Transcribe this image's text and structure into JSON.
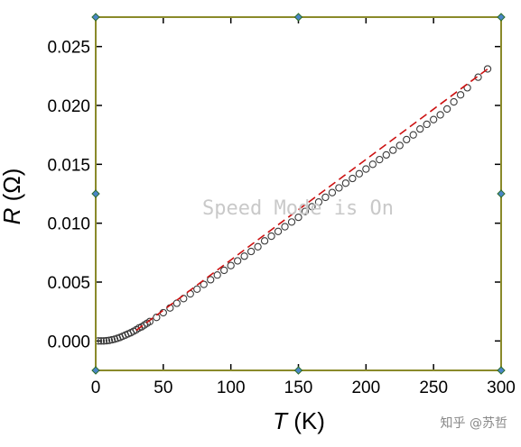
{
  "chart_data": {
    "type": "scatter",
    "xlabel": {
      "italic": "T",
      "unit": "(K)"
    },
    "ylabel": {
      "italic": "R",
      "unit": "(Ω)"
    },
    "xlim": [
      0,
      300
    ],
    "ylim": [
      -0.0025,
      0.0275
    ],
    "xticks": [
      0,
      50,
      100,
      150,
      200,
      250,
      300
    ],
    "yticks": [
      0.0,
      0.005,
      0.01,
      0.015,
      0.02,
      0.025
    ],
    "xtick_labels": [
      "0",
      "50",
      "100",
      "150",
      "200",
      "250",
      "300"
    ],
    "ytick_labels": [
      "0.000",
      "0.005",
      "0.010",
      "0.015",
      "0.020",
      "0.025"
    ],
    "grid": false,
    "marker_color": "#3a3a3a",
    "fit_color": "#cc1111",
    "frame_color": "#8a8a2a",
    "series": [
      {
        "kind": "scatter",
        "marker": "open-circle",
        "points": [
          [
            2,
            0.0
          ],
          [
            4,
            0.0
          ],
          [
            6,
            0.0
          ],
          [
            8,
            2e-05
          ],
          [
            10,
            5e-05
          ],
          [
            12,
            0.0001
          ],
          [
            14,
            0.00015
          ],
          [
            16,
            0.00022
          ],
          [
            18,
            0.0003
          ],
          [
            20,
            0.0004
          ],
          [
            22,
            0.0005
          ],
          [
            24,
            0.0006
          ],
          [
            26,
            0.0007
          ],
          [
            28,
            0.00082
          ],
          [
            30,
            0.00095
          ],
          [
            32,
            0.0011
          ],
          [
            34,
            0.0012
          ],
          [
            36,
            0.00135
          ],
          [
            38,
            0.0015
          ],
          [
            40,
            0.00165
          ],
          [
            45,
            0.002
          ],
          [
            50,
            0.0024
          ],
          [
            55,
            0.0028
          ],
          [
            60,
            0.0032
          ],
          [
            65,
            0.0036
          ],
          [
            70,
            0.004
          ],
          [
            75,
            0.0044
          ],
          [
            80,
            0.0048
          ],
          [
            85,
            0.0052
          ],
          [
            90,
            0.0056
          ],
          [
            95,
            0.006
          ],
          [
            100,
            0.0064
          ],
          [
            105,
            0.0068
          ],
          [
            110,
            0.0072
          ],
          [
            115,
            0.0076
          ],
          [
            120,
            0.008
          ],
          [
            125,
            0.0085
          ],
          [
            130,
            0.0089
          ],
          [
            135,
            0.0093
          ],
          [
            140,
            0.0097
          ],
          [
            145,
            0.0101
          ],
          [
            150,
            0.0105
          ],
          [
            155,
            0.011
          ],
          [
            160,
            0.0114
          ],
          [
            165,
            0.0118
          ],
          [
            170,
            0.0122
          ],
          [
            175,
            0.0126
          ],
          [
            180,
            0.013
          ],
          [
            185,
            0.0134
          ],
          [
            190,
            0.0138
          ],
          [
            195,
            0.0142
          ],
          [
            200,
            0.0146
          ],
          [
            205,
            0.015
          ],
          [
            210,
            0.0154
          ],
          [
            215,
            0.0158
          ],
          [
            220,
            0.0162
          ],
          [
            225,
            0.0166
          ],
          [
            230,
            0.0171
          ],
          [
            235,
            0.0175
          ],
          [
            240,
            0.018
          ],
          [
            245,
            0.0184
          ],
          [
            250,
            0.0188
          ],
          [
            255,
            0.0192
          ],
          [
            260,
            0.0197
          ],
          [
            265,
            0.0203
          ],
          [
            270,
            0.0209
          ],
          [
            275,
            0.0215
          ],
          [
            283,
            0.0224
          ],
          [
            290,
            0.0231
          ]
        ]
      },
      {
        "kind": "line",
        "style": "dashed",
        "points": [
          [
            30,
            0.0009
          ],
          [
            290,
            0.0231
          ]
        ]
      }
    ]
  },
  "watermark": "Speed Mode is On",
  "credit": "知乎 @苏哲"
}
